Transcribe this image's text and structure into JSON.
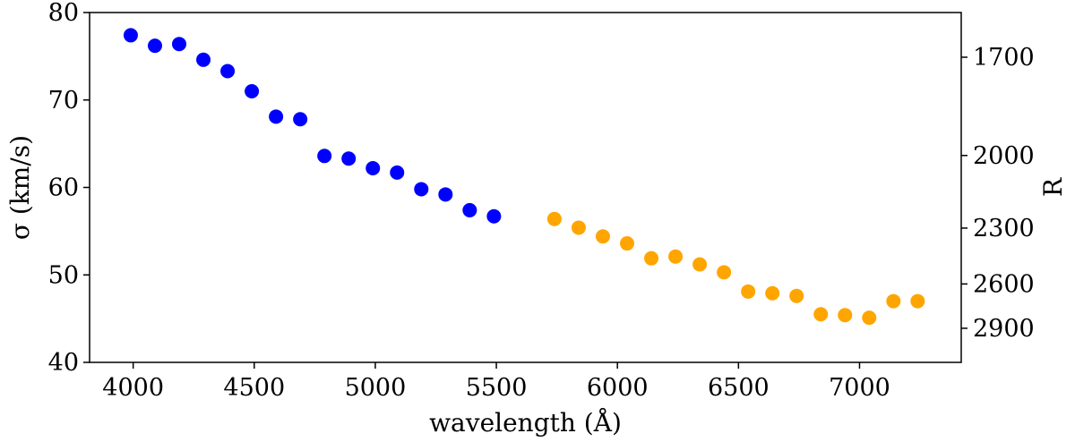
{
  "chart_data": {
    "type": "scatter",
    "title": "",
    "xlabel": "wavelength (Å)",
    "ylabel": "σ (km/s)",
    "y2label": "R",
    "xlim": [
      3820,
      7420
    ],
    "ylim": [
      40,
      80
    ],
    "xticks": [
      4000,
      4500,
      5000,
      5500,
      6000,
      6500,
      7000
    ],
    "yticks": [
      40,
      50,
      60,
      70,
      80
    ],
    "y2ticks": [
      1700,
      2000,
      2300,
      2600,
      2900
    ],
    "grid": false,
    "legend": "none",
    "series": [
      {
        "color": "#0000ff",
        "x": [
          3990,
          4090,
          4190,
          4290,
          4390,
          4490,
          4590,
          4690,
          4790,
          4890,
          4990,
          5090,
          5190,
          5290,
          5390,
          5490
        ],
        "y": [
          77.4,
          76.2,
          76.4,
          74.6,
          73.3,
          71.0,
          68.1,
          67.8,
          63.6,
          63.3,
          62.2,
          61.7,
          59.8,
          59.2,
          57.4,
          56.7
        ]
      },
      {
        "color": "#ffa500",
        "x": [
          5740,
          5840,
          5940,
          6040,
          6140,
          6240,
          6340,
          6440,
          6540,
          6640,
          6740,
          6840,
          6940,
          7040,
          7140,
          7240
        ],
        "y": [
          56.4,
          55.4,
          54.4,
          53.6,
          51.9,
          52.1,
          51.2,
          50.3,
          48.1,
          47.9,
          47.6,
          45.5,
          45.4,
          45.1,
          47.0,
          47.0
        ]
      }
    ]
  }
}
